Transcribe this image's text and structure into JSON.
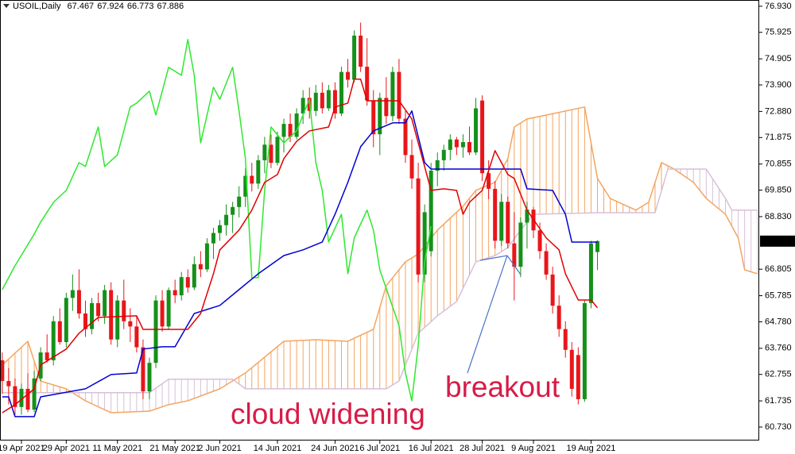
{
  "chart_data": {
    "type": "candlestick",
    "title": "USOIL,Daily",
    "xlim": [
      -0.35,
      118.28
    ],
    "ylim": [
      60.21,
      77.17
    ],
    "xticks": [
      {
        "value": 3,
        "label": "19 Apr 2021"
      },
      {
        "value": 10,
        "label": "29 Apr 2021"
      },
      {
        "value": 18,
        "label": "11 May 2021"
      },
      {
        "value": 27,
        "label": "21 May 2021"
      },
      {
        "value": 34,
        "label": "2 Jun 2021"
      },
      {
        "value": 43,
        "label": "14 Jun 2021"
      },
      {
        "value": 52,
        "label": "24 Jun 2021"
      },
      {
        "value": 59,
        "label": "6 Jul 2021"
      },
      {
        "value": 67,
        "label": "16 Jul 2021"
      },
      {
        "value": 75,
        "label": "28 Jul 2021"
      },
      {
        "value": 83,
        "label": "9 Aug 2021"
      },
      {
        "value": 92,
        "label": "19 Aug 2021"
      }
    ],
    "yticks": [
      {
        "value": 76.93,
        "label": "76.930"
      },
      75.925,
      74.905,
      {
        "value": 73.9,
        "label": "73.900"
      },
      {
        "value": 72.88,
        "label": "72.880"
      },
      71.875,
      70.855,
      {
        "value": 69.85,
        "label": "69.850"
      },
      {
        "value": 68.83,
        "label": "68.830"
      },
      66.805,
      65.785,
      {
        "value": 64.78,
        "label": "64.780"
      },
      {
        "value": 63.76,
        "label": "63.760"
      },
      62.755,
      61.735,
      {
        "value": 60.73,
        "label": "60.730"
      }
    ],
    "up_color": "#15901a",
    "down_color": "#e8161a",
    "candles": [
      [
        63.3,
        63.6,
        62.0,
        62.5
      ],
      [
        62.5,
        63.0,
        61.6,
        62.3
      ],
      [
        62.3,
        62.6,
        61.2,
        61.5
      ],
      [
        61.5,
        62.4,
        61.2,
        62.2
      ],
      [
        62.2,
        62.8,
        61.3,
        61.4
      ],
      [
        61.4,
        62.9,
        61.3,
        62.6
      ],
      [
        62.6,
        63.8,
        62.5,
        63.6
      ],
      [
        63.6,
        64.3,
        63.2,
        63.3
      ],
      [
        63.3,
        65.0,
        63.1,
        64.8
      ],
      [
        64.8,
        65.3,
        63.9,
        64.0
      ],
      [
        64.0,
        65.9,
        63.8,
        65.7
      ],
      [
        65.7,
        66.6,
        65.2,
        66.0
      ],
      [
        66.0,
        66.8,
        64.9,
        65.1
      ],
      [
        65.1,
        65.6,
        64.2,
        64.5
      ],
      [
        64.5,
        65.7,
        64.3,
        65.5
      ],
      [
        65.5,
        65.9,
        64.8,
        65.0
      ],
      [
        65.0,
        66.2,
        64.7,
        66.0
      ],
      [
        66.0,
        66.3,
        63.9,
        64.1
      ],
      [
        64.1,
        65.8,
        63.8,
        65.6
      ],
      [
        65.6,
        66.4,
        64.5,
        64.8
      ],
      [
        64.8,
        65.3,
        64.0,
        64.6
      ],
      [
        64.6,
        65.0,
        63.6,
        63.8
      ],
      [
        63.8,
        64.1,
        61.8,
        62.1
      ],
      [
        62.1,
        63.4,
        61.8,
        63.2
      ],
      [
        63.2,
        65.8,
        63.0,
        65.6
      ],
      [
        65.6,
        66.0,
        64.4,
        64.6
      ],
      [
        64.6,
        66.1,
        64.5,
        66.0
      ],
      [
        66.0,
        66.4,
        65.5,
        65.8
      ],
      [
        65.8,
        66.7,
        65.6,
        66.5
      ],
      [
        66.5,
        66.8,
        65.9,
        66.1
      ],
      [
        66.1,
        67.3,
        66.0,
        67.0
      ],
      [
        67.0,
        67.5,
        66.5,
        66.8
      ],
      [
        66.8,
        68.0,
        66.7,
        67.8
      ],
      [
        67.8,
        68.4,
        67.2,
        68.2
      ],
      [
        68.2,
        68.7,
        67.9,
        68.5
      ],
      [
        68.5,
        69.3,
        68.1,
        68.9
      ],
      [
        68.9,
        69.4,
        68.2,
        69.2
      ],
      [
        69.2,
        70.0,
        68.8,
        69.6
      ],
      [
        69.6,
        70.7,
        69.2,
        70.4
      ],
      [
        70.4,
        70.9,
        69.8,
        70.1
      ],
      [
        70.1,
        71.2,
        69.9,
        71.0
      ],
      [
        71.0,
        71.9,
        70.5,
        71.6
      ],
      [
        71.6,
        72.0,
        70.7,
        70.9
      ],
      [
        70.9,
        72.1,
        70.8,
        71.9
      ],
      [
        71.9,
        72.6,
        71.3,
        72.4
      ],
      [
        72.4,
        72.8,
        71.7,
        71.9
      ],
      [
        71.9,
        73.0,
        71.8,
        72.8
      ],
      [
        72.8,
        73.7,
        72.4,
        73.4
      ],
      [
        73.4,
        73.8,
        72.6,
        72.9
      ],
      [
        72.9,
        73.9,
        72.7,
        73.6
      ],
      [
        73.6,
        74.0,
        72.8,
        73.0
      ],
      [
        73.0,
        73.9,
        72.9,
        73.7
      ],
      [
        73.7,
        74.0,
        72.6,
        72.8
      ],
      [
        72.8,
        74.6,
        72.7,
        74.4
      ],
      [
        74.4,
        74.9,
        73.8,
        74.1
      ],
      [
        74.1,
        76.0,
        74.0,
        75.8
      ],
      [
        75.8,
        76.3,
        74.4,
        74.6
      ],
      [
        74.6,
        75.7,
        73.1,
        73.3
      ],
      [
        73.3,
        73.7,
        71.5,
        72.0
      ],
      [
        72.0,
        73.6,
        71.2,
        73.4
      ],
      [
        73.4,
        74.2,
        72.4,
        72.7
      ],
      [
        72.7,
        74.6,
        72.5,
        74.4
      ],
      [
        74.4,
        74.9,
        72.4,
        72.6
      ],
      [
        72.6,
        72.9,
        70.9,
        71.2
      ],
      [
        71.2,
        71.8,
        69.9,
        70.3
      ],
      [
        70.3,
        70.9,
        66.3,
        66.6
      ],
      [
        66.6,
        69.3,
        66.3,
        69.0
      ],
      [
        67.5,
        70.9,
        67.3,
        70.6
      ],
      [
        70.6,
        71.3,
        70.0,
        71.0
      ],
      [
        71.0,
        71.6,
        70.6,
        71.4
      ],
      [
        71.4,
        72.0,
        71.0,
        71.8
      ],
      [
        71.8,
        71.9,
        71.2,
        71.5
      ],
      [
        71.5,
        72.0,
        71.1,
        71.7
      ],
      [
        71.7,
        72.3,
        71.2,
        71.3
      ],
      [
        71.3,
        73.4,
        71.2,
        73.0
      ],
      [
        73.3,
        73.5,
        70.2,
        70.5
      ],
      [
        70.5,
        71.0,
        69.5,
        69.9
      ],
      [
        69.9,
        70.2,
        67.6,
        67.9
      ],
      [
        67.9,
        69.7,
        67.7,
        69.4
      ],
      [
        69.4,
        69.6,
        67.6,
        67.8
      ],
      [
        67.8,
        69.0,
        65.6,
        66.9
      ],
      [
        66.9,
        68.8,
        66.5,
        68.6
      ],
      [
        68.6,
        69.4,
        67.6,
        69.1
      ],
      [
        69.1,
        69.2,
        68.0,
        68.3
      ],
      [
        68.3,
        68.6,
        67.2,
        67.5
      ],
      [
        67.5,
        67.8,
        66.4,
        66.6
      ],
      [
        66.6,
        66.9,
        65.1,
        65.4
      ],
      [
        65.4,
        65.8,
        64.2,
        64.5
      ],
      [
        64.5,
        64.8,
        63.4,
        63.7
      ],
      [
        63.7,
        64.0,
        61.9,
        62.2
      ],
      [
        63.5,
        63.8,
        61.6,
        61.8
      ],
      [
        61.8,
        65.6,
        61.7,
        65.5
      ],
      [
        65.5,
        67.9,
        65.3,
        67.8
      ],
      [
        67.467,
        67.924,
        66.773,
        67.886
      ]
    ],
    "tenkan": {
      "color": "#e00000",
      "x": [
        0,
        2,
        5,
        6,
        10,
        12,
        15,
        21,
        22,
        29,
        31,
        33,
        34,
        37,
        39,
        41,
        43,
        44,
        46,
        48,
        51,
        52,
        54,
        55,
        56,
        57,
        62,
        64,
        65,
        67,
        69,
        71,
        72,
        73,
        75,
        77,
        78,
        79,
        80,
        82,
        85,
        87,
        88,
        90,
        92,
        93
      ],
      "values": [
        61.28,
        61.59,
        62.2,
        63.12,
        63.73,
        64.34,
        64.95,
        65.01,
        64.49,
        64.49,
        65.1,
        66.63,
        67.55,
        68.31,
        69.08,
        70.15,
        70.45,
        71.06,
        71.73,
        72.13,
        72.28,
        73.05,
        73.2,
        74.12,
        74.12,
        73.29,
        73.29,
        72.59,
        71.67,
        69.84,
        69.9,
        69.84,
        68.92,
        69.38,
        69.84,
        71.37,
        70.91,
        70.45,
        70.3,
        69.08,
        68.01,
        67.55,
        66.63,
        65.62,
        65.62,
        65.32
      ]
    },
    "kijun": {
      "color": "#0000d4",
      "x": [
        0,
        1,
        2,
        5,
        6,
        13,
        17,
        21,
        22,
        25,
        27,
        30,
        34,
        37,
        40,
        44,
        47,
        50,
        52,
        54,
        56,
        58,
        61,
        63,
        64,
        66,
        67,
        81,
        82,
        86,
        88,
        89,
        92,
        93
      ],
      "values": [
        61.89,
        61.89,
        61.13,
        61.13,
        61.89,
        62.2,
        62.75,
        62.81,
        63.73,
        63.82,
        63.82,
        65.1,
        65.41,
        66.02,
        66.63,
        67.33,
        67.55,
        67.85,
        68.92,
        70.15,
        71.52,
        72.13,
        72.44,
        72.44,
        72.9,
        70.91,
        70.66,
        70.66,
        69.9,
        69.84,
        68.92,
        67.85,
        67.85,
        67.85
      ]
    },
    "chikou": {
      "color": "#2ee82e",
      "x": [
        0,
        2,
        5,
        6,
        8,
        10,
        12,
        13,
        15,
        16,
        18,
        20,
        21,
        23,
        24,
        26,
        28,
        29,
        30,
        31,
        33,
        34,
        36,
        37,
        38,
        39,
        40,
        41,
        42,
        44,
        46,
        48,
        49,
        50,
        51,
        53,
        54,
        55,
        57,
        58,
        59,
        62,
        63,
        64,
        65,
        66,
        67
      ],
      "values": [
        66.02,
        66.94,
        68.16,
        68.62,
        69.38,
        69.84,
        70.91,
        70.76,
        72.28,
        70.76,
        71.21,
        73.05,
        73.2,
        73.66,
        72.74,
        74.58,
        74.27,
        75.65,
        74.27,
        71.67,
        73.81,
        73.35,
        74.58,
        72.9,
        71.06,
        66.48,
        66.48,
        69.84,
        72.28,
        71.67,
        72.13,
        73.35,
        70.91,
        69.84,
        67.85,
        68.92,
        66.63,
        68.01,
        69.08,
        68.31,
        66.78,
        64.64,
        62.81,
        61.74,
        63.88,
        67.09,
        68.46
      ]
    },
    "senkou_a": {
      "color": "#f4a460",
      "x": [
        0,
        4,
        6,
        10,
        13,
        17,
        23,
        26,
        29,
        34,
        38,
        41,
        44,
        49,
        54,
        58,
        60,
        63,
        65,
        68,
        72,
        74,
        77,
        79,
        80,
        82,
        85,
        91,
        93,
        95,
        99,
        101,
        103,
        105,
        108,
        110,
        113,
        115,
        116,
        118
      ],
      "values": [
        63.12,
        64.03,
        62.5,
        62.2,
        61.74,
        61.28,
        61.34,
        61.59,
        61.74,
        62.2,
        62.81,
        63.42,
        64.03,
        64.09,
        64.03,
        64.49,
        66.17,
        67.09,
        67.39,
        68.31,
        69.23,
        69.84,
        70.15,
        71.06,
        72.28,
        72.59,
        72.74,
        73.05,
        70.3,
        69.53,
        69.08,
        69.38,
        70.91,
        70.66,
        70.15,
        69.53,
        68.92,
        68.01,
        66.78,
        66.63
      ]
    },
    "senkou_b": {
      "color": "#d8bfd8",
      "x": [
        0,
        23,
        26,
        36,
        38,
        60,
        62,
        65,
        68,
        71,
        74,
        77,
        79,
        81,
        83,
        93,
        102,
        104,
        110,
        113,
        114,
        118
      ],
      "values": [
        62.05,
        62.05,
        62.57,
        62.57,
        62.2,
        62.2,
        62.5,
        64.34,
        65.01,
        65.56,
        67.09,
        67.33,
        67.64,
        68.31,
        68.92,
        68.98,
        68.98,
        70.66,
        70.66,
        69.53,
        69.08,
        69.08
      ]
    },
    "annotations": [
      "cloud widening",
      "breakout"
    ]
  }
}
